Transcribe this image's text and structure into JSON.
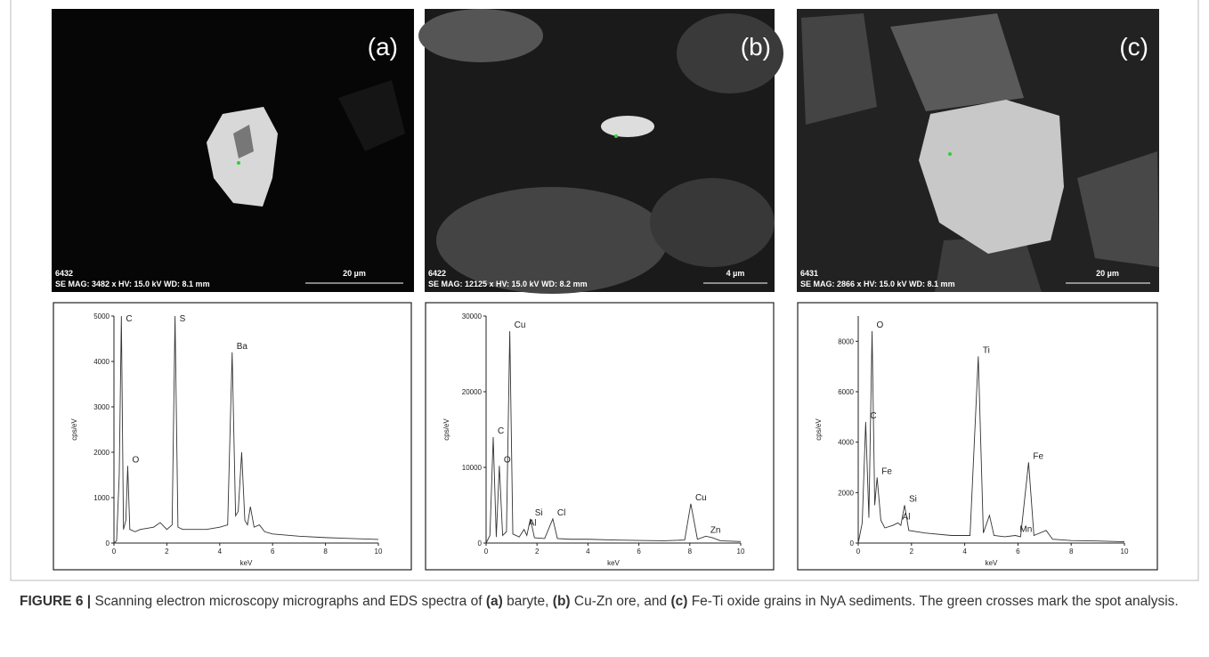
{
  "micrographs": [
    {
      "tag": "(a)",
      "id": "6432",
      "info": "SE MAG: 3482 x HV: 15.0 kV WD: 8.1 mm",
      "scale": "20 µm"
    },
    {
      "tag": "(b)",
      "id": "6422",
      "info": "SE MAG: 12125 x HV: 15.0 kV WD: 8.2 mm",
      "scale": "4 µm"
    },
    {
      "tag": "(c)",
      "id": "6431",
      "info": "SE MAG: 2866 x HV: 15.0 kV WD: 8.1 mm",
      "scale": "20 µm"
    }
  ],
  "chart_data": [
    {
      "type": "line",
      "x_label": "keV",
      "y_label": "cps/eV",
      "color": "#333333",
      "x": [
        0,
        0.1,
        0.2,
        0.28,
        0.36,
        0.45,
        0.52,
        0.6,
        0.8,
        1.0,
        1.5,
        1.75,
        2.0,
        2.2,
        2.31,
        2.42,
        2.6,
        3.0,
        3.5,
        4.0,
        4.3,
        4.47,
        4.6,
        4.7,
        4.83,
        4.95,
        5.05,
        5.16,
        5.3,
        5.5,
        5.7,
        6.0,
        7,
        8,
        9,
        10
      ],
      "values": [
        0,
        50,
        1500,
        5000,
        300,
        500,
        1700,
        300,
        250,
        300,
        350,
        450,
        300,
        400,
        5000,
        350,
        300,
        300,
        300,
        350,
        400,
        4200,
        600,
        700,
        2000,
        500,
        400,
        800,
        350,
        400,
        250,
        200,
        150,
        120,
        100,
        80
      ],
      "xlim": [
        0,
        10
      ],
      "xticks": [
        0,
        2,
        4,
        6,
        8,
        10
      ],
      "ylim": [
        0,
        5000
      ],
      "yticks": [
        0,
        1000,
        2000,
        3000,
        4000,
        5000
      ],
      "annotations": [
        {
          "text": "C",
          "x": 0.28,
          "y": 5000
        },
        {
          "text": "O",
          "x": 0.52,
          "y": 1700
        },
        {
          "text": "S",
          "x": 2.31,
          "y": 5000
        },
        {
          "text": "Ba",
          "x": 4.47,
          "y": 4200
        }
      ]
    },
    {
      "type": "line",
      "x_label": "keV",
      "y_label": "cps/eV",
      "color": "#333333",
      "x": [
        0,
        0.15,
        0.28,
        0.4,
        0.52,
        0.65,
        0.8,
        0.93,
        1.05,
        1.3,
        1.49,
        1.6,
        1.74,
        1.9,
        2.3,
        2.62,
        2.8,
        3.3,
        4.0,
        5,
        6,
        7,
        7.8,
        8.04,
        8.3,
        8.63,
        8.9,
        9.2,
        10
      ],
      "values": [
        0,
        1000,
        14000,
        800,
        10200,
        1000,
        1500,
        28000,
        1200,
        800,
        1800,
        1000,
        3200,
        700,
        600,
        3200,
        600,
        500,
        500,
        400,
        350,
        300,
        400,
        5200,
        500,
        900,
        700,
        300,
        200
      ],
      "xlim": [
        0,
        10
      ],
      "xticks": [
        0,
        2,
        4,
        6,
        8,
        10
      ],
      "ylim": [
        0,
        30000
      ],
      "yticks": [
        0,
        10000,
        20000,
        30000
      ],
      "annotations": [
        {
          "text": "C",
          "x": 0.28,
          "y": 14000
        },
        {
          "text": "O",
          "x": 0.52,
          "y": 10200
        },
        {
          "text": "Cu",
          "x": 0.93,
          "y": 28000
        },
        {
          "text": "Al",
          "x": 1.49,
          "y": 1800
        },
        {
          "text": "Si",
          "x": 1.74,
          "y": 3200
        },
        {
          "text": "Cl",
          "x": 2.62,
          "y": 3200
        },
        {
          "text": "Cu",
          "x": 8.04,
          "y": 5200
        },
        {
          "text": "Zn",
          "x": 8.63,
          "y": 900
        }
      ]
    },
    {
      "type": "line",
      "x_label": "keV",
      "y_label": "cps/eV",
      "color": "#333333",
      "x": [
        0,
        0.15,
        0.28,
        0.4,
        0.52,
        0.62,
        0.71,
        0.85,
        1.0,
        1.3,
        1.49,
        1.6,
        1.74,
        1.9,
        2.5,
        3.5,
        4.2,
        4.51,
        4.7,
        4.93,
        5.1,
        5.5,
        5.9,
        6.1,
        6.4,
        6.6,
        7.06,
        7.3,
        8,
        9,
        10
      ],
      "values": [
        0,
        800,
        4800,
        1000,
        8400,
        1500,
        2600,
        900,
        600,
        700,
        800,
        700,
        1500,
        500,
        400,
        300,
        300,
        7400,
        400,
        1100,
        300,
        250,
        300,
        250,
        3200,
        300,
        500,
        150,
        100,
        80,
        50
      ],
      "xlim": [
        0,
        10
      ],
      "xticks": [
        0,
        2,
        4,
        6,
        8,
        10
      ],
      "ylim": [
        0,
        9000
      ],
      "yticks": [
        0,
        2000,
        4000,
        6000,
        8000
      ],
      "annotations": [
        {
          "text": "C",
          "x": 0.28,
          "y": 4800
        },
        {
          "text": "O",
          "x": 0.52,
          "y": 8400
        },
        {
          "text": "Fe",
          "x": 0.71,
          "y": 2600
        },
        {
          "text": "Al",
          "x": 1.49,
          "y": 800
        },
        {
          "text": "Si",
          "x": 1.74,
          "y": 1500
        },
        {
          "text": "Ti",
          "x": 4.51,
          "y": 7400
        },
        {
          "text": "Mn",
          "x": 5.9,
          "y": 300
        },
        {
          "text": "Fe",
          "x": 6.4,
          "y": 3200
        }
      ]
    }
  ],
  "caption": [
    {
      "text": "FIGURE 6 |",
      "bold": true
    },
    {
      "text": " Scanning electron microscopy micrographs and EDS spectra of ",
      "bold": false
    },
    {
      "text": "(a)",
      "bold": true
    },
    {
      "text": " baryte, ",
      "bold": false
    },
    {
      "text": "(b)",
      "bold": true
    },
    {
      "text": " Cu-Zn ore, and ",
      "bold": false
    },
    {
      "text": "(c)",
      "bold": true
    },
    {
      "text": " Fe-Ti oxide grains in NyA sediments. The green crosses mark the spot analysis.",
      "bold": false
    }
  ]
}
